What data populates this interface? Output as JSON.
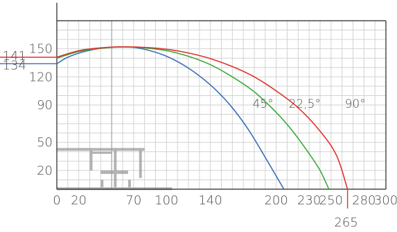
{
  "chart_data": {
    "type": "line",
    "title": "",
    "xlabel": "",
    "ylabel": "",
    "xlim": [
      0,
      300
    ],
    "ylim": [
      0,
      180
    ],
    "grid": true,
    "x_ticks": [
      {
        "value": 0,
        "label": "0"
      },
      {
        "value": 20,
        "label": "20"
      },
      {
        "value": 70,
        "label": "70"
      },
      {
        "value": 100,
        "label": "100"
      },
      {
        "value": 140,
        "label": "140"
      },
      {
        "value": 200,
        "label": "200"
      },
      {
        "value": 230,
        "label": "230"
      },
      {
        "value": 250,
        "label": "250"
      },
      {
        "value": 280,
        "label": "280"
      },
      {
        "value": 300,
        "label": "300"
      }
    ],
    "y_ticks": [
      {
        "value": 20,
        "label": "20"
      },
      {
        "value": 50,
        "label": "50"
      },
      {
        "value": 90,
        "label": "90"
      },
      {
        "value": 120,
        "label": "120"
      },
      {
        "value": 150,
        "label": "150"
      }
    ],
    "y_extra_labels": [
      {
        "value": 141,
        "label": "141"
      },
      {
        "value": 134,
        "label": "134"
      }
    ],
    "x_extra_labels": [
      {
        "value": 265,
        "label": "265"
      }
    ],
    "series": [
      {
        "name": "45°",
        "color": "#3a6fb7",
        "x": [
          0,
          10,
          25,
          40,
          55,
          70,
          85,
          100,
          115,
          130,
          145,
          160,
          175,
          190,
          202,
          207
        ],
        "y": [
          134,
          141,
          147,
          150.5,
          152,
          151.5,
          148,
          142,
          133,
          121,
          106,
          87,
          63,
          34,
          10,
          0
        ]
      },
      {
        "name": "22,5°",
        "color": "#3aa83a",
        "x": [
          0,
          20,
          40,
          60,
          80,
          100,
          120,
          140,
          160,
          180,
          200,
          215,
          230,
          240,
          248
        ],
        "y": [
          140,
          147,
          150.5,
          152,
          151,
          148,
          142,
          133,
          120,
          104,
          82,
          62,
          38,
          20,
          0
        ]
      },
      {
        "name": "90°",
        "color": "#e0302a",
        "x": [
          0,
          20,
          40,
          60,
          80,
          100,
          120,
          140,
          160,
          180,
          200,
          220,
          240,
          255,
          265
        ],
        "y": [
          141,
          148,
          151,
          152,
          151.5,
          149.5,
          145.5,
          139.5,
          131,
          120,
          105,
          87,
          62,
          36,
          0
        ]
      }
    ],
    "annotations": [
      {
        "text": "45°",
        "x": 188,
        "y": 87
      },
      {
        "text": "22,5°",
        "x": 226,
        "y": 87
      },
      {
        "text": "90°",
        "x": 272,
        "y": 87
      }
    ]
  }
}
